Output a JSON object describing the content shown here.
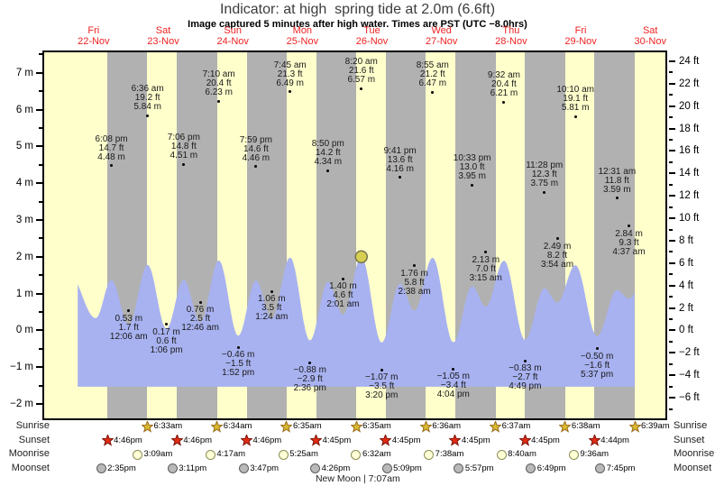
{
  "title": "Indicator: at high  spring tide at 2.0m (6.6ft)",
  "subtitle": "Image captured 5 minutes after high water. Times are PST (UTC −8.0hrs)",
  "days": [
    {
      "dow": "Fri",
      "date": "22-Nov"
    },
    {
      "dow": "Sat",
      "date": "23-Nov"
    },
    {
      "dow": "Sun",
      "date": "24-Nov"
    },
    {
      "dow": "Mon",
      "date": "25-Nov"
    },
    {
      "dow": "Tue",
      "date": "26-Nov"
    },
    {
      "dow": "Wed",
      "date": "27-Nov"
    },
    {
      "dow": "Thu",
      "date": "28-Nov"
    },
    {
      "dow": "Fri",
      "date": "29-Nov"
    },
    {
      "dow": "Sat",
      "date": "30-Nov"
    }
  ],
  "y_axis": {
    "left_labels": [
      {
        "text": "7 m",
        "m": 7
      },
      {
        "text": "6 m",
        "m": 6
      },
      {
        "text": "5 m",
        "m": 5
      },
      {
        "text": "4 m",
        "m": 4
      },
      {
        "text": "3 m",
        "m": 3
      },
      {
        "text": "2 m",
        "m": 2
      },
      {
        "text": "1 m",
        "m": 1
      },
      {
        "text": "0 m",
        "m": 0
      },
      {
        "text": "−1 m",
        "m": -1
      },
      {
        "text": "−2 m",
        "m": -2
      }
    ],
    "right_labels": [
      {
        "text": "24 ft",
        "ft": 24
      },
      {
        "text": "22 ft",
        "ft": 22
      },
      {
        "text": "20 ft",
        "ft": 20
      },
      {
        "text": "18 ft",
        "ft": 18
      },
      {
        "text": "16 ft",
        "ft": 16
      },
      {
        "text": "14 ft",
        "ft": 14
      },
      {
        "text": "12 ft",
        "ft": 12
      },
      {
        "text": "10 ft",
        "ft": 10
      },
      {
        "text": "8 ft",
        "ft": 8
      },
      {
        "text": "6 ft",
        "ft": 6
      },
      {
        "text": "4 ft",
        "ft": 4
      },
      {
        "text": "2 ft",
        "ft": 2
      },
      {
        "text": "0 ft",
        "ft": 0
      },
      {
        "text": "−2 ft",
        "ft": -2
      },
      {
        "text": "−4 ft",
        "ft": -4
      },
      {
        "text": "−6 ft",
        "ft": -6
      }
    ]
  },
  "chart_data": {
    "type": "area",
    "title": "Indicator: at high  spring tide at 2.0m (6.6ft)",
    "x_axis": {
      "unit": "days since Fri 22-Nov 00:00",
      "range": [
        -0.2106,
        8.7171
      ]
    },
    "y_axis_m": {
      "min": -2.39,
      "max": 7.56
    },
    "wave_divisor": 3.28,
    "wave_clip": {
      "start": 0.271,
      "end": 8.2771
    },
    "fill_baseline_m": -1.53,
    "indicator": {
      "t": 4.3472,
      "curve_m": 2.003
    },
    "high_tides": [
      {
        "time": "6:08 pm",
        "ft": "14.7 ft",
        "m": "4.48 m",
        "t": 0.7556,
        "height_m": 4.48
      },
      {
        "time": "6:36 am",
        "ft": "19.2 ft",
        "m": "5.84 m",
        "t": 1.275,
        "height_m": 5.84
      },
      {
        "time": "7:06 pm",
        "ft": "14.8 ft",
        "m": "4.51 m",
        "t": 1.7958,
        "height_m": 4.51
      },
      {
        "time": "7:10 am",
        "ft": "20.4 ft",
        "m": "6.23 m",
        "t": 2.2986,
        "height_m": 6.23
      },
      {
        "time": "7:59 pm",
        "ft": "14.6 ft",
        "m": "4.46 m",
        "t": 2.8326,
        "height_m": 4.46
      },
      {
        "time": "7:45 am",
        "ft": "21.3 ft",
        "m": "6.49 m",
        "t": 3.3229,
        "height_m": 6.49
      },
      {
        "time": "8:50 pm",
        "ft": "14.2 ft",
        "m": "4.34 m",
        "t": 3.8681,
        "height_m": 4.34
      },
      {
        "time": "8:20 am",
        "ft": "21.6 ft",
        "m": "6.57 m",
        "t": 4.3472,
        "height_m": 6.57
      },
      {
        "time": "9:41 pm",
        "ft": "13.6 ft",
        "m": "4.16 m",
        "t": 4.9035,
        "height_m": 4.16
      },
      {
        "time": "8:55 am",
        "ft": "21.2 ft",
        "m": "6.47 m",
        "t": 5.3715,
        "height_m": 6.47
      },
      {
        "time": "10:33 pm",
        "ft": "13.0 ft",
        "m": "3.95 m",
        "t": 5.9396,
        "height_m": 3.95
      },
      {
        "time": "9:32 am",
        "ft": "20.4 ft",
        "m": "6.21 m",
        "t": 6.3972,
        "height_m": 6.21
      },
      {
        "time": "11:28 pm",
        "ft": "12.3 ft",
        "m": "3.75 m",
        "t": 6.9778,
        "height_m": 3.75
      },
      {
        "time": "10:10 am",
        "ft": "19.1 ft",
        "m": "5.81 m",
        "t": 7.4236,
        "height_m": 5.81
      },
      {
        "time": "12:31 am",
        "ft": "11.8 ft",
        "m": "3.59 m",
        "t": 8.0215,
        "height_m": 3.59
      }
    ],
    "low_tides": [
      {
        "m": "0.53 m",
        "ft": "1.7 ft",
        "time": "12:06 am",
        "t": 1.0042,
        "height_m": 0.53
      },
      {
        "m": "0.17 m",
        "ft": "0.6 ft",
        "time": "1:06 pm",
        "t": 1.5458,
        "height_m": 0.17
      },
      {
        "m": "0.76 m",
        "ft": "2.5 ft",
        "time": "12:46 am",
        "t": 2.0319,
        "height_m": 0.76
      },
      {
        "m": "−0.46 m",
        "ft": "−1.5 ft",
        "time": "1:52 pm",
        "t": 2.5778,
        "height_m": -0.46
      },
      {
        "m": "1.06 m",
        "ft": "3.5 ft",
        "time": "1:24 am",
        "t": 3.0583,
        "height_m": 1.06
      },
      {
        "m": "−0.88 m",
        "ft": "−2.9 ft",
        "time": "2:36 pm",
        "t": 3.6083,
        "height_m": -0.88
      },
      {
        "m": "1.40 m",
        "ft": "4.6 ft",
        "time": "2:01 am",
        "t": 4.084,
        "height_m": 1.4
      },
      {
        "m": "−1.07 m",
        "ft": "−3.5 ft",
        "time": "3:20 pm",
        "t": 4.6389,
        "height_m": -1.07
      },
      {
        "m": "1.76 m",
        "ft": "5.8 ft",
        "time": "2:38 am",
        "t": 5.1097,
        "height_m": 1.76
      },
      {
        "m": "−1.05 m",
        "ft": "−3.4 ft",
        "time": "4:04 pm",
        "t": 5.6694,
        "height_m": -1.05
      },
      {
        "m": "2.13 m",
        "ft": "7.0 ft",
        "time": "3:15 am",
        "t": 6.1354,
        "height_m": 2.13
      },
      {
        "m": "−0.83 m",
        "ft": "−2.7 ft",
        "time": "4:49 pm",
        "t": 6.7007,
        "height_m": -0.83
      },
      {
        "m": "2.49 m",
        "ft": "8.2 ft",
        "time": "3:54 am",
        "t": 7.1625,
        "height_m": 2.49
      },
      {
        "m": "−0.50 m",
        "ft": "−1.6 ft",
        "time": "5:37 pm",
        "t": 7.734,
        "height_m": -0.5
      },
      {
        "m": "2.84 m",
        "ft": "9.3 ft",
        "time": "4:37 am",
        "t": 8.1924,
        "height_m": 2.84
      }
    ],
    "wave_padding_extremes": [
      {
        "t": 0.13,
        "height_m": 5.3
      },
      {
        "t": 0.53,
        "height_m": 1.1
      },
      {
        "t": 8.46,
        "height_m": 5.5
      }
    ]
  },
  "astro": {
    "row_labels": [
      "Sunrise",
      "Sunset",
      "Moonrise",
      "Moonset"
    ],
    "sunrise": [
      {
        "time": "6:33am",
        "t": 1.2729
      },
      {
        "time": "6:34am",
        "t": 2.2736
      },
      {
        "time": "6:35am",
        "t": 3.2743
      },
      {
        "time": "6:35am",
        "t": 4.2743
      },
      {
        "time": "6:36am",
        "t": 5.275
      },
      {
        "time": "6:37am",
        "t": 6.2757
      },
      {
        "time": "6:38am",
        "t": 7.2764
      },
      {
        "time": "6:39am",
        "t": 8.2771
      }
    ],
    "sunset": [
      {
        "time": "4:46pm",
        "t": 0.6986
      },
      {
        "time": "4:46pm",
        "t": 1.6986
      },
      {
        "time": "4:46pm",
        "t": 2.6986
      },
      {
        "time": "4:45pm",
        "t": 3.6979
      },
      {
        "time": "4:45pm",
        "t": 4.6979
      },
      {
        "time": "4:45pm",
        "t": 5.6979
      },
      {
        "time": "4:45pm",
        "t": 6.6979
      },
      {
        "time": "4:44pm",
        "t": 7.6972
      }
    ],
    "moonrise": [
      {
        "time": "3:09am",
        "t": 1.1313
      },
      {
        "time": "4:17am",
        "t": 2.1785
      },
      {
        "time": "5:25am",
        "t": 3.2257
      },
      {
        "time": "6:32am",
        "t": 4.2722
      },
      {
        "time": "7:38am",
        "t": 5.3181
      },
      {
        "time": "8:40am",
        "t": 6.3611
      },
      {
        "time": "9:36am",
        "t": 7.4
      }
    ],
    "moonset": [
      {
        "time": "2:35pm",
        "t": 0.6076
      },
      {
        "time": "3:11pm",
        "t": 1.6326
      },
      {
        "time": "3:47pm",
        "t": 2.6576
      },
      {
        "time": "4:26pm",
        "t": 3.6847
      },
      {
        "time": "5:09pm",
        "t": 4.7146
      },
      {
        "time": "5:57pm",
        "t": 5.7479
      },
      {
        "time": "6:49pm",
        "t": 6.784
      },
      {
        "time": "7:45pm",
        "t": 7.7813
      }
    ],
    "new_moon": {
      "text": "New Moon | 7:07am",
      "t": 4.2965
    }
  },
  "colors": {
    "day_band": "#ffffcc",
    "night_band": "#b1b1b1",
    "water": "#a8b2f0",
    "date_red": "#ee2222",
    "indicator_fill": "#d8cf52",
    "indicator_stroke": "#73734d",
    "sunrise_star_fill": "#d9b930",
    "sunrise_star_stroke": "#996c1e",
    "sunset_star_fill": "#e32b14",
    "sunset_star_stroke": "#7a150a",
    "moonrise_fill": "#ffffd6",
    "moonrise_stroke": "#8d8d55",
    "moonset_fill": "#b9b9b9",
    "moonset_stroke": "#5e5e5e"
  }
}
